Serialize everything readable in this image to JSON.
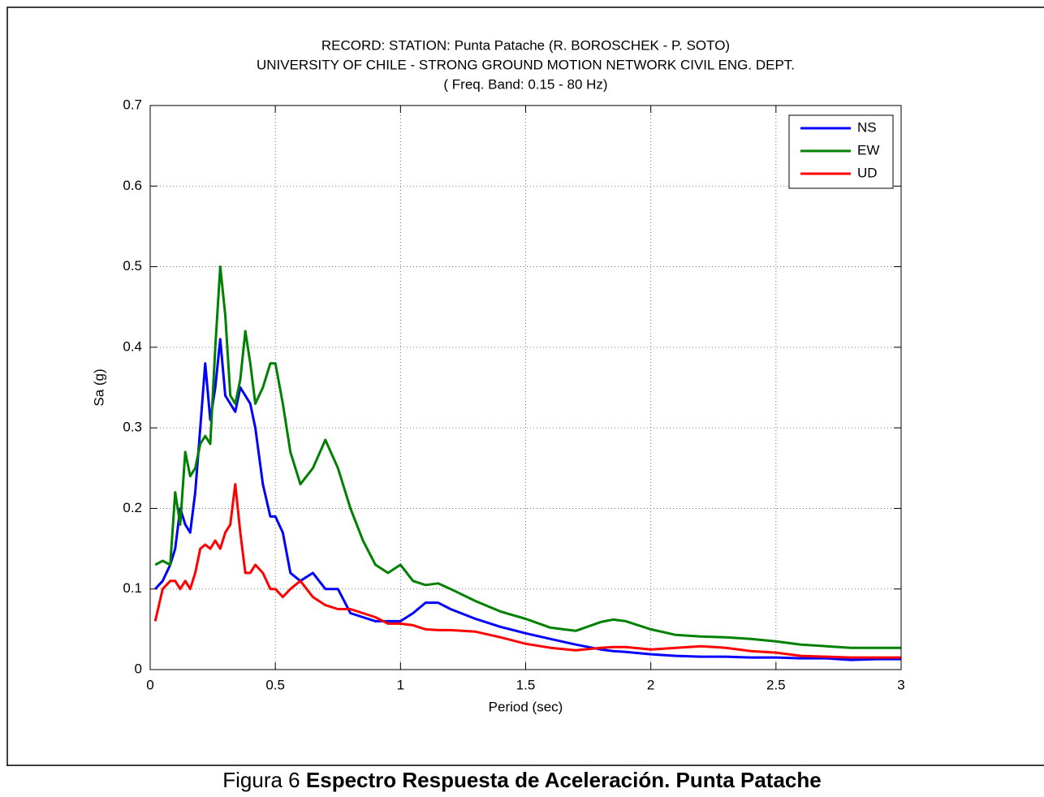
{
  "chart_data": {
    "type": "line",
    "title": [
      "RECORD: STATION: Punta Patache (R. BOROSCHEK - P. SOTO)",
      "UNIVERSITY OF CHILE - STRONG GROUND MOTION NETWORK CIVIL ENG. DEPT.",
      "( Freq. Band: 0.15 - 80 Hz)"
    ],
    "xlabel": "Period (sec)",
    "ylabel": "Sa (g)",
    "x": [
      0.02,
      0.05,
      0.08,
      0.1,
      0.12,
      0.14,
      0.16,
      0.18,
      0.2,
      0.22,
      0.24,
      0.26,
      0.28,
      0.3,
      0.32,
      0.34,
      0.36,
      0.38,
      0.4,
      0.42,
      0.45,
      0.48,
      0.5,
      0.53,
      0.56,
      0.6,
      0.65,
      0.7,
      0.75,
      0.8,
      0.85,
      0.9,
      0.95,
      1.0,
      1.05,
      1.1,
      1.15,
      1.2,
      1.3,
      1.4,
      1.5,
      1.6,
      1.7,
      1.8,
      1.85,
      1.9,
      2.0,
      2.1,
      2.2,
      2.3,
      2.4,
      2.5,
      2.6,
      2.7,
      2.8,
      2.9,
      3.0
    ],
    "series": [
      {
        "name": "NS",
        "color": "#0000ff",
        "values": [
          0.1,
          0.11,
          0.13,
          0.15,
          0.2,
          0.18,
          0.17,
          0.22,
          0.3,
          0.38,
          0.31,
          0.35,
          0.41,
          0.34,
          0.33,
          0.32,
          0.35,
          0.34,
          0.33,
          0.3,
          0.23,
          0.19,
          0.19,
          0.17,
          0.12,
          0.11,
          0.12,
          0.1,
          0.1,
          0.07,
          0.065,
          0.06,
          0.06,
          0.06,
          0.07,
          0.083,
          0.083,
          0.075,
          0.063,
          0.053,
          0.045,
          0.038,
          0.031,
          0.025,
          0.023,
          0.022,
          0.019,
          0.017,
          0.016,
          0.016,
          0.015,
          0.015,
          0.014,
          0.014,
          0.012,
          0.013,
          0.013
        ]
      },
      {
        "name": "EW",
        "color": "#008000",
        "values": [
          0.13,
          0.135,
          0.13,
          0.22,
          0.18,
          0.27,
          0.24,
          0.25,
          0.28,
          0.29,
          0.28,
          0.4,
          0.5,
          0.44,
          0.34,
          0.33,
          0.36,
          0.42,
          0.38,
          0.33,
          0.35,
          0.38,
          0.38,
          0.33,
          0.27,
          0.23,
          0.25,
          0.285,
          0.25,
          0.2,
          0.16,
          0.13,
          0.12,
          0.13,
          0.11,
          0.105,
          0.107,
          0.1,
          0.085,
          0.072,
          0.063,
          0.052,
          0.048,
          0.059,
          0.062,
          0.06,
          0.05,
          0.043,
          0.041,
          0.04,
          0.038,
          0.035,
          0.031,
          0.029,
          0.027,
          0.027,
          0.027
        ]
      },
      {
        "name": "UD",
        "color": "#ff0000",
        "values": [
          0.06,
          0.1,
          0.11,
          0.11,
          0.1,
          0.11,
          0.1,
          0.12,
          0.15,
          0.155,
          0.15,
          0.16,
          0.15,
          0.17,
          0.18,
          0.23,
          0.17,
          0.12,
          0.12,
          0.13,
          0.12,
          0.1,
          0.1,
          0.09,
          0.1,
          0.11,
          0.09,
          0.08,
          0.075,
          0.075,
          0.07,
          0.065,
          0.057,
          0.057,
          0.055,
          0.05,
          0.049,
          0.049,
          0.047,
          0.04,
          0.032,
          0.027,
          0.024,
          0.027,
          0.028,
          0.028,
          0.025,
          0.027,
          0.029,
          0.027,
          0.023,
          0.021,
          0.017,
          0.016,
          0.015,
          0.015,
          0.015
        ]
      }
    ],
    "xlim": [
      0,
      3
    ],
    "xticks": [
      0,
      0.5,
      1,
      1.5,
      2,
      2.5,
      3
    ],
    "ylim": [
      0,
      0.7
    ],
    "yticks": [
      0,
      0.1,
      0.2,
      0.3,
      0.4,
      0.5,
      0.6,
      0.7
    ],
    "grid": true,
    "legend": "upper right"
  },
  "caption": {
    "label": "Figura 6",
    "text": "Espectro Respuesta de Aceleración. Punta Patache"
  }
}
